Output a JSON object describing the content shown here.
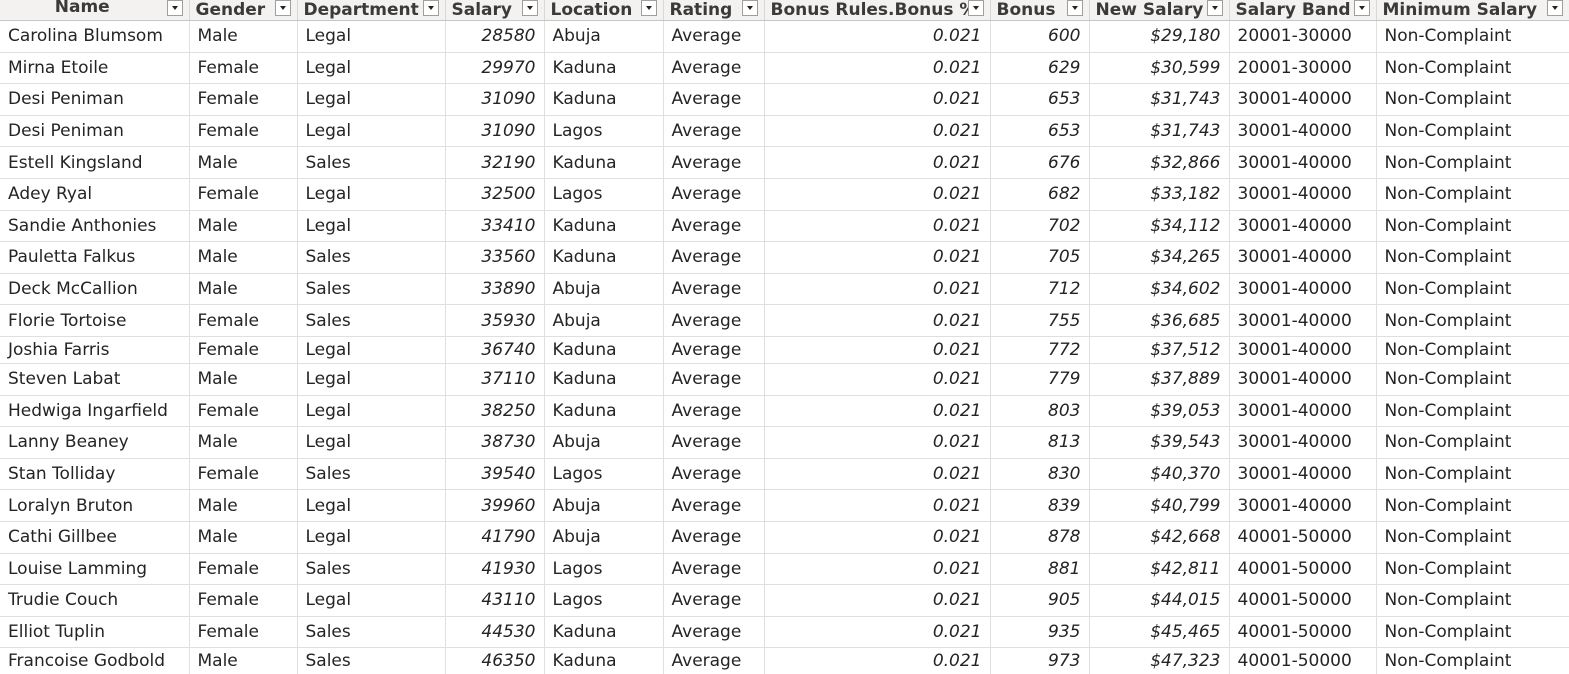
{
  "table": {
    "columns": [
      {
        "key": "name",
        "label": "Name"
      },
      {
        "key": "gender",
        "label": "Gender"
      },
      {
        "key": "department",
        "label": "Department"
      },
      {
        "key": "salary",
        "label": "Salary"
      },
      {
        "key": "location",
        "label": "Location"
      },
      {
        "key": "rating",
        "label": "Rating"
      },
      {
        "key": "bonus_pct",
        "label": "Bonus Rules.Bonus %"
      },
      {
        "key": "bonus",
        "label": "Bonus"
      },
      {
        "key": "new_salary",
        "label": "New Salary"
      },
      {
        "key": "salary_band",
        "label": "Salary Band"
      },
      {
        "key": "minimum_salary",
        "label": "Minimum Salary"
      }
    ],
    "rows": [
      {
        "name": "Carolina Blumsom",
        "gender": "Male",
        "department": "Legal",
        "salary": "28580",
        "location": "Abuja",
        "rating": "Average",
        "bonus_pct": "0.021",
        "bonus": "600",
        "new_salary": "$29,180",
        "salary_band": "20001-30000",
        "minimum_salary": "Non-Complaint"
      },
      {
        "name": "Mirna Etoile",
        "gender": "Female",
        "department": "Legal",
        "salary": "29970",
        "location": "Kaduna",
        "rating": "Average",
        "bonus_pct": "0.021",
        "bonus": "629",
        "new_salary": "$30,599",
        "salary_band": "20001-30000",
        "minimum_salary": "Non-Complaint"
      },
      {
        "name": "Desi Peniman",
        "gender": "Female",
        "department": "Legal",
        "salary": "31090",
        "location": "Kaduna",
        "rating": "Average",
        "bonus_pct": "0.021",
        "bonus": "653",
        "new_salary": "$31,743",
        "salary_band": "30001-40000",
        "minimum_salary": "Non-Complaint"
      },
      {
        "name": "Desi Peniman",
        "gender": "Female",
        "department": "Legal",
        "salary": "31090",
        "location": "Lagos",
        "rating": "Average",
        "bonus_pct": "0.021",
        "bonus": "653",
        "new_salary": "$31,743",
        "salary_band": "30001-40000",
        "minimum_salary": "Non-Complaint"
      },
      {
        "name": "Estell Kingsland",
        "gender": "Male",
        "department": "Sales",
        "salary": "32190",
        "location": "Kaduna",
        "rating": "Average",
        "bonus_pct": "0.021",
        "bonus": "676",
        "new_salary": "$32,866",
        "salary_band": "30001-40000",
        "minimum_salary": "Non-Complaint"
      },
      {
        "name": "Adey Ryal",
        "gender": "Female",
        "department": "Legal",
        "salary": "32500",
        "location": "Lagos",
        "rating": "Average",
        "bonus_pct": "0.021",
        "bonus": "682",
        "new_salary": "$33,182",
        "salary_band": "30001-40000",
        "minimum_salary": "Non-Complaint"
      },
      {
        "name": "Sandie Anthonies",
        "gender": "Male",
        "department": "Legal",
        "salary": "33410",
        "location": "Kaduna",
        "rating": "Average",
        "bonus_pct": "0.021",
        "bonus": "702",
        "new_salary": "$34,112",
        "salary_band": "30001-40000",
        "minimum_salary": "Non-Complaint"
      },
      {
        "name": "Pauletta Falkus",
        "gender": "Male",
        "department": "Sales",
        "salary": "33560",
        "location": "Kaduna",
        "rating": "Average",
        "bonus_pct": "0.021",
        "bonus": "705",
        "new_salary": "$34,265",
        "salary_band": "30001-40000",
        "minimum_salary": "Non-Complaint"
      },
      {
        "name": "Deck McCallion",
        "gender": "Male",
        "department": "Sales",
        "salary": "33890",
        "location": "Abuja",
        "rating": "Average",
        "bonus_pct": "0.021",
        "bonus": "712",
        "new_salary": "$34,602",
        "salary_band": "30001-40000",
        "minimum_salary": "Non-Complaint"
      },
      {
        "name": "Florie Tortoise",
        "gender": "Female",
        "department": "Sales",
        "salary": "35930",
        "location": "Abuja",
        "rating": "Average",
        "bonus_pct": "0.021",
        "bonus": "755",
        "new_salary": "$36,685",
        "salary_band": "30001-40000",
        "minimum_salary": "Non-Complaint"
      },
      {
        "name": "Joshia Farris",
        "gender": "Female",
        "department": "Legal",
        "salary": "36740",
        "location": "Kaduna",
        "rating": "Average",
        "bonus_pct": "0.021",
        "bonus": "772",
        "new_salary": "$37,512",
        "salary_band": "30001-40000",
        "minimum_salary": "Non-Complaint"
      },
      {
        "name": "Steven Labat",
        "gender": "Male",
        "department": "Legal",
        "salary": "37110",
        "location": "Kaduna",
        "rating": "Average",
        "bonus_pct": "0.021",
        "bonus": "779",
        "new_salary": "$37,889",
        "salary_band": "30001-40000",
        "minimum_salary": "Non-Complaint"
      },
      {
        "name": "Hedwiga Ingarfield",
        "gender": "Female",
        "department": "Legal",
        "salary": "38250",
        "location": "Kaduna",
        "rating": "Average",
        "bonus_pct": "0.021",
        "bonus": "803",
        "new_salary": "$39,053",
        "salary_band": "30001-40000",
        "minimum_salary": "Non-Complaint"
      },
      {
        "name": "Lanny Beaney",
        "gender": "Male",
        "department": "Legal",
        "salary": "38730",
        "location": "Abuja",
        "rating": "Average",
        "bonus_pct": "0.021",
        "bonus": "813",
        "new_salary": "$39,543",
        "salary_band": "30001-40000",
        "minimum_salary": "Non-Complaint"
      },
      {
        "name": "Stan Tolliday",
        "gender": "Female",
        "department": "Sales",
        "salary": "39540",
        "location": "Lagos",
        "rating": "Average",
        "bonus_pct": "0.021",
        "bonus": "830",
        "new_salary": "$40,370",
        "salary_band": "30001-40000",
        "minimum_salary": "Non-Complaint"
      },
      {
        "name": "Loralyn Bruton",
        "gender": "Male",
        "department": "Legal",
        "salary": "39960",
        "location": "Abuja",
        "rating": "Average",
        "bonus_pct": "0.021",
        "bonus": "839",
        "new_salary": "$40,799",
        "salary_band": "30001-40000",
        "minimum_salary": "Non-Complaint"
      },
      {
        "name": "Cathi Gillbee",
        "gender": "Male",
        "department": "Legal",
        "salary": "41790",
        "location": "Abuja",
        "rating": "Average",
        "bonus_pct": "0.021",
        "bonus": "878",
        "new_salary": "$42,668",
        "salary_band": "40001-50000",
        "minimum_salary": "Non-Complaint"
      },
      {
        "name": "Louise Lamming",
        "gender": "Female",
        "department": "Sales",
        "salary": "41930",
        "location": "Lagos",
        "rating": "Average",
        "bonus_pct": "0.021",
        "bonus": "881",
        "new_salary": "$42,811",
        "salary_band": "40001-50000",
        "minimum_salary": "Non-Complaint"
      },
      {
        "name": "Trudie Couch",
        "gender": "Female",
        "department": "Legal",
        "salary": "43110",
        "location": "Lagos",
        "rating": "Average",
        "bonus_pct": "0.021",
        "bonus": "905",
        "new_salary": "$44,015",
        "salary_band": "40001-50000",
        "minimum_salary": "Non-Complaint"
      },
      {
        "name": "Elliot Tuplin",
        "gender": "Female",
        "department": "Sales",
        "salary": "44530",
        "location": "Kaduna",
        "rating": "Average",
        "bonus_pct": "0.021",
        "bonus": "935",
        "new_salary": "$45,465",
        "salary_band": "40001-50000",
        "minimum_salary": "Non-Complaint"
      },
      {
        "name": "Francoise Godbold",
        "gender": "Male",
        "department": "Sales",
        "salary": "46350",
        "location": "Kaduna",
        "rating": "Average",
        "bonus_pct": "0.021",
        "bonus": "973",
        "new_salary": "$47,323",
        "salary_band": "40001-50000",
        "minimum_salary": "Non-Complaint"
      }
    ]
  }
}
